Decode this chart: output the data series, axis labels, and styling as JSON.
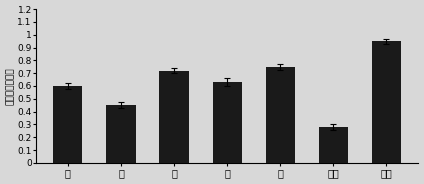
{
  "categories": [
    "心",
    "肝",
    "脾",
    "肌",
    "肾",
    "肌肉",
    "脂肪"
  ],
  "values": [
    0.6,
    0.45,
    0.72,
    0.63,
    0.75,
    0.28,
    0.95
  ],
  "errors": [
    0.02,
    0.025,
    0.02,
    0.03,
    0.025,
    0.02,
    0.02
  ],
  "bar_color": "#1a1a1a",
  "bar_width": 0.55,
  "ylim": [
    0,
    1.2
  ],
  "yticks": [
    0,
    0.1,
    0.2,
    0.3,
    0.4,
    0.5,
    0.6,
    0.7,
    0.8,
    0.9,
    1.0,
    1.1,
    1.2
  ],
  "ytick_labels": [
    "0",
    "0.1",
    "0.2",
    "0.3",
    "0.4",
    "0.5",
    "0.6",
    "0.7",
    "0.8",
    "0.9",
    "1",
    "1.1",
    "1.2"
  ],
  "ylabel": "基因相对表达量",
  "background_color": "#d8d8d8",
  "font_size": 7,
  "ylabel_fontsize": 6.5
}
